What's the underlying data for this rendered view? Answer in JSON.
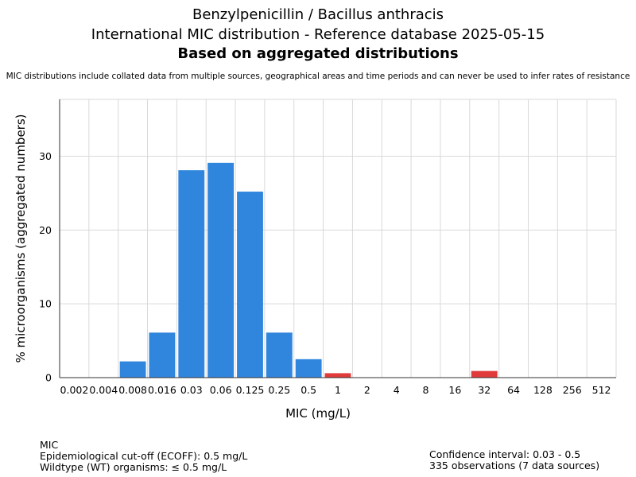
{
  "header": {
    "title_line1": "Benzylpenicillin / Bacillus anthracis",
    "title_line2": "International MIC distribution - Reference database 2025-05-15",
    "title_line3": "Based on aggregated distributions",
    "note": "MIC distributions include collated data from multiple sources, geographical areas and time periods and can never be used to infer rates of resistance"
  },
  "chart_data": {
    "type": "bar",
    "xlabel": "MIC (mg/L)",
    "ylabel": "% microorganisms (aggregated numbers)",
    "categories": [
      "0.002",
      "0.004",
      "0.008",
      "0.016",
      "0.03",
      "0.06",
      "0.125",
      "0.25",
      "0.5",
      "1",
      "2",
      "4",
      "8",
      "16",
      "32",
      "64",
      "128",
      "256",
      "512"
    ],
    "values": [
      0,
      0,
      2.2,
      6.1,
      28.1,
      29.1,
      25.2,
      6.1,
      2.5,
      0.6,
      0,
      0,
      0,
      0,
      0.9,
      0,
      0,
      0,
      0
    ],
    "bar_colors": [
      "#2f86dc",
      "#2f86dc",
      "#2f86dc",
      "#2f86dc",
      "#2f86dc",
      "#2f86dc",
      "#2f86dc",
      "#2f86dc",
      "#2f86dc",
      "#e03a3a",
      "#e03a3a",
      "#e03a3a",
      "#e03a3a",
      "#e03a3a",
      "#e03a3a",
      "#e03a3a",
      "#e03a3a",
      "#e03a3a",
      "#e03a3a"
    ],
    "wildtype_color": "#2f86dc",
    "non_wildtype_color": "#e03a3a",
    "ylim": [
      0,
      37.7
    ],
    "yticks": [
      0,
      10,
      20,
      30
    ],
    "grid": true
  },
  "footer": {
    "left_line1": "MIC",
    "left_line2": "Epidemiological cut-off (ECOFF): 0.5 mg/L",
    "left_line3": "Wildtype (WT) organisms: ≤ 0.5 mg/L",
    "right_line1": "Confidence interval: 0.03 - 0.5",
    "right_line2": "335 observations (7 data sources)"
  }
}
